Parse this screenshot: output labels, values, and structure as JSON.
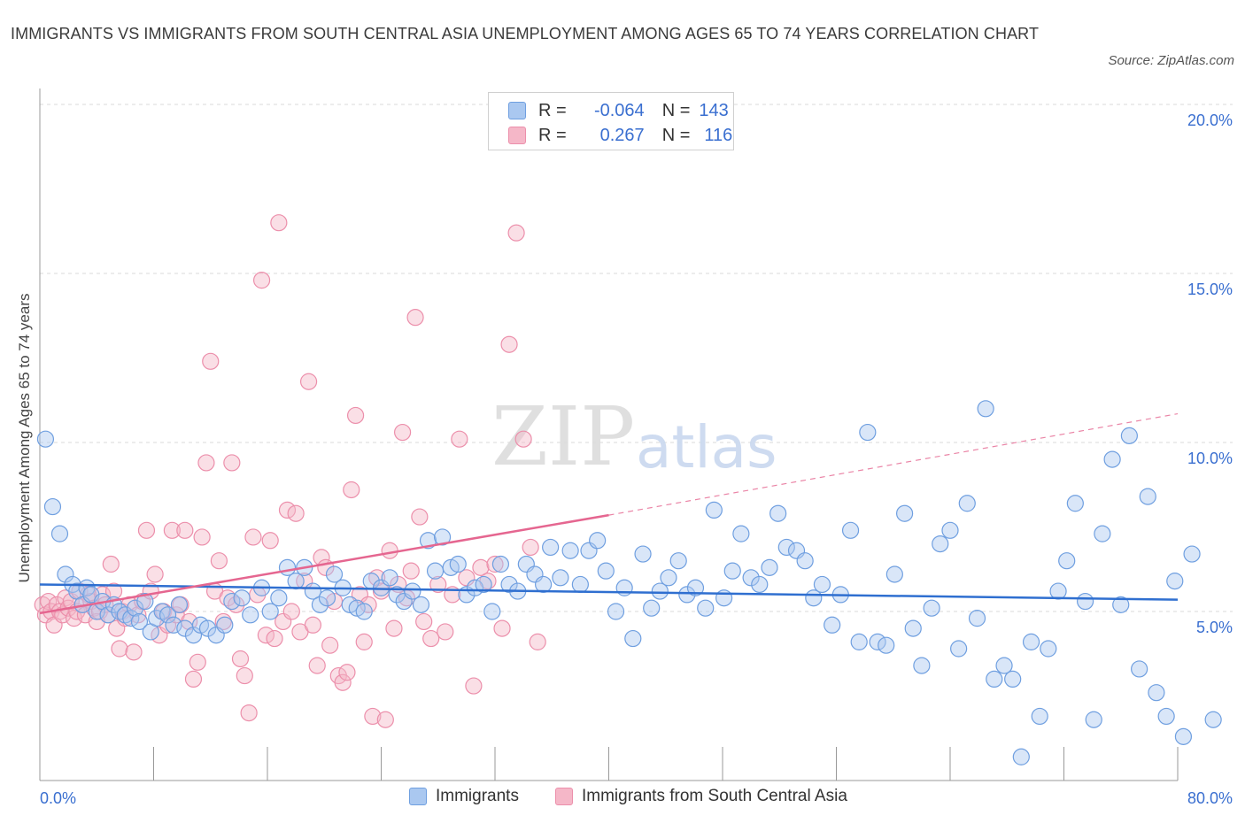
{
  "title": "IMMIGRANTS VS IMMIGRANTS FROM SOUTH CENTRAL ASIA UNEMPLOYMENT AMONG AGES 65 TO 74 YEARS CORRELATION CHART",
  "source": "Source: ZipAtlas.com",
  "watermark": {
    "zip": "ZIP",
    "atlas": "atlas"
  },
  "legend": {
    "r_label": "R =",
    "n_label": "N =",
    "rows": [
      {
        "r": "-0.064",
        "n": "143"
      },
      {
        "r": "0.267",
        "n": "116"
      }
    ]
  },
  "colors": {
    "blue_fill": "#aac8f0",
    "blue_stroke": "#6f9fe0",
    "blue_line": "#2f6fd0",
    "pink_fill": "#f5b7c8",
    "pink_stroke": "#ec8fab",
    "pink_line": "#e56690",
    "axis_label": "#3a6fd0",
    "grid": "#d9d9d9"
  },
  "chart_data": {
    "type": "scatter",
    "xlabel": "",
    "ylabel": "Unemployment Among Ages 65 to 74 years",
    "xlim": [
      0,
      80
    ],
    "ylim": [
      0,
      20
    ],
    "x_ticks_labeled": [
      "0.0%",
      "80.0%"
    ],
    "y_ticks": [
      {
        "value": 5,
        "label": "5.0%"
      },
      {
        "value": 10,
        "label": "10.0%"
      },
      {
        "value": 15,
        "label": "15.0%"
      },
      {
        "value": 20,
        "label": "20.0%"
      }
    ],
    "grid": "horizontal dashed",
    "legend_position": "top-center",
    "series": [
      {
        "name": "Immigrants",
        "r": -0.064,
        "n": 143,
        "trend": {
          "x": [
            0,
            80
          ],
          "y": [
            5.8,
            5.35
          ],
          "style": "solid"
        },
        "points": [
          [
            0.4,
            10.1
          ],
          [
            0.9,
            8.1
          ],
          [
            1.4,
            7.3
          ],
          [
            1.8,
            6.1
          ],
          [
            2.3,
            5.8
          ],
          [
            2.6,
            5.6
          ],
          [
            3.0,
            5.2
          ],
          [
            3.3,
            5.7
          ],
          [
            3.6,
            5.5
          ],
          [
            4.0,
            5.0
          ],
          [
            4.4,
            5.3
          ],
          [
            4.8,
            4.9
          ],
          [
            5.2,
            5.2
          ],
          [
            5.6,
            5.0
          ],
          [
            6.0,
            4.9
          ],
          [
            6.4,
            4.8
          ],
          [
            6.7,
            5.1
          ],
          [
            7.0,
            4.7
          ],
          [
            7.4,
            5.3
          ],
          [
            7.8,
            4.4
          ],
          [
            8.2,
            4.8
          ],
          [
            8.6,
            5.0
          ],
          [
            9.0,
            4.9
          ],
          [
            9.4,
            4.6
          ],
          [
            9.8,
            5.2
          ],
          [
            10.2,
            4.5
          ],
          [
            10.8,
            4.3
          ],
          [
            11.3,
            4.6
          ],
          [
            11.8,
            4.5
          ],
          [
            12.4,
            4.3
          ],
          [
            13.0,
            4.6
          ],
          [
            13.5,
            5.3
          ],
          [
            14.2,
            5.4
          ],
          [
            14.8,
            4.9
          ],
          [
            15.6,
            5.7
          ],
          [
            16.2,
            5.0
          ],
          [
            16.8,
            5.4
          ],
          [
            17.4,
            6.3
          ],
          [
            18.0,
            5.9
          ],
          [
            18.6,
            6.3
          ],
          [
            19.2,
            5.6
          ],
          [
            19.7,
            5.2
          ],
          [
            20.2,
            5.4
          ],
          [
            20.7,
            6.1
          ],
          [
            21.3,
            5.7
          ],
          [
            21.8,
            5.2
          ],
          [
            22.3,
            5.1
          ],
          [
            22.8,
            5.0
          ],
          [
            23.3,
            5.9
          ],
          [
            24.0,
            5.7
          ],
          [
            24.6,
            6.0
          ],
          [
            25.1,
            5.5
          ],
          [
            25.6,
            5.3
          ],
          [
            26.2,
            5.6
          ],
          [
            26.8,
            5.2
          ],
          [
            27.3,
            7.1
          ],
          [
            27.8,
            6.2
          ],
          [
            28.3,
            7.2
          ],
          [
            28.9,
            6.3
          ],
          [
            29.4,
            6.4
          ],
          [
            30.0,
            5.5
          ],
          [
            30.6,
            5.7
          ],
          [
            31.2,
            5.8
          ],
          [
            31.8,
            5.0
          ],
          [
            32.4,
            6.4
          ],
          [
            33.0,
            5.8
          ],
          [
            33.6,
            5.6
          ],
          [
            34.2,
            6.4
          ],
          [
            34.8,
            6.1
          ],
          [
            35.4,
            5.8
          ],
          [
            35.9,
            6.9
          ],
          [
            36.6,
            6.0
          ],
          [
            37.3,
            6.8
          ],
          [
            38.0,
            5.8
          ],
          [
            38.6,
            6.8
          ],
          [
            39.2,
            7.1
          ],
          [
            39.8,
            6.2
          ],
          [
            40.5,
            5.0
          ],
          [
            41.1,
            5.7
          ],
          [
            41.7,
            4.2
          ],
          [
            42.4,
            6.7
          ],
          [
            43.0,
            5.1
          ],
          [
            43.6,
            5.6
          ],
          [
            44.2,
            6.0
          ],
          [
            44.9,
            6.5
          ],
          [
            45.5,
            5.5
          ],
          [
            46.1,
            5.7
          ],
          [
            46.8,
            5.1
          ],
          [
            47.4,
            8.0
          ],
          [
            48.1,
            5.4
          ],
          [
            48.7,
            6.2
          ],
          [
            49.3,
            7.3
          ],
          [
            50.0,
            6.0
          ],
          [
            50.6,
            5.8
          ],
          [
            51.3,
            6.3
          ],
          [
            51.9,
            7.9
          ],
          [
            52.5,
            6.9
          ],
          [
            53.2,
            6.8
          ],
          [
            53.8,
            6.5
          ],
          [
            54.4,
            5.4
          ],
          [
            55.0,
            5.8
          ],
          [
            55.7,
            4.6
          ],
          [
            56.3,
            5.5
          ],
          [
            57.0,
            7.4
          ],
          [
            57.6,
            4.1
          ],
          [
            58.2,
            10.3
          ],
          [
            58.9,
            4.1
          ],
          [
            59.5,
            4.0
          ],
          [
            60.1,
            6.1
          ],
          [
            60.8,
            7.9
          ],
          [
            61.4,
            4.5
          ],
          [
            62.0,
            3.4
          ],
          [
            62.7,
            5.1
          ],
          [
            63.3,
            7.0
          ],
          [
            64.0,
            7.4
          ],
          [
            64.6,
            3.9
          ],
          [
            65.2,
            8.2
          ],
          [
            65.9,
            4.8
          ],
          [
            66.5,
            11.0
          ],
          [
            67.1,
            3.0
          ],
          [
            67.8,
            3.4
          ],
          [
            68.4,
            3.0
          ],
          [
            69.0,
            0.7
          ],
          [
            69.7,
            4.1
          ],
          [
            70.3,
            1.9
          ],
          [
            70.9,
            3.9
          ],
          [
            71.6,
            5.6
          ],
          [
            72.2,
            6.5
          ],
          [
            72.8,
            8.2
          ],
          [
            73.5,
            5.3
          ],
          [
            74.1,
            1.8
          ],
          [
            74.7,
            7.3
          ],
          [
            75.4,
            9.5
          ],
          [
            76.0,
            5.2
          ],
          [
            76.6,
            10.2
          ],
          [
            77.3,
            3.3
          ],
          [
            77.9,
            8.4
          ],
          [
            78.5,
            2.6
          ],
          [
            79.2,
            1.9
          ],
          [
            79.8,
            5.9
          ],
          [
            80.4,
            1.3
          ],
          [
            81.0,
            6.7
          ],
          [
            82.5,
            1.8
          ]
        ]
      },
      {
        "name": "Immigrants from South Central Asia",
        "r": 0.267,
        "n": 116,
        "trend": {
          "x": [
            0,
            40
          ],
          "y": [
            4.95,
            7.85
          ],
          "style": "solid",
          "dashed_extension_to": [
            80,
            10.85
          ]
        },
        "points": [
          [
            0.2,
            5.2
          ],
          [
            0.4,
            4.9
          ],
          [
            0.6,
            5.3
          ],
          [
            0.8,
            5.0
          ],
          [
            1.0,
            4.6
          ],
          [
            1.2,
            5.2
          ],
          [
            1.4,
            5.0
          ],
          [
            1.6,
            4.9
          ],
          [
            1.8,
            5.4
          ],
          [
            2.0,
            5.1
          ],
          [
            2.2,
            5.3
          ],
          [
            2.4,
            4.8
          ],
          [
            2.6,
            5.0
          ],
          [
            2.8,
            5.6
          ],
          [
            3.0,
            5.2
          ],
          [
            3.2,
            4.9
          ],
          [
            3.4,
            5.5
          ],
          [
            3.6,
            5.3
          ],
          [
            3.8,
            5.1
          ],
          [
            4.0,
            4.7
          ],
          [
            4.2,
            5.0
          ],
          [
            4.4,
            5.5
          ],
          [
            4.6,
            5.2
          ],
          [
            4.8,
            4.9
          ],
          [
            5.0,
            6.4
          ],
          [
            5.2,
            5.6
          ],
          [
            5.4,
            4.5
          ],
          [
            5.6,
            3.9
          ],
          [
            5.8,
            5.0
          ],
          [
            6.0,
            4.8
          ],
          [
            6.3,
            5.2
          ],
          [
            6.6,
            3.8
          ],
          [
            6.9,
            4.9
          ],
          [
            7.2,
            5.3
          ],
          [
            7.5,
            7.4
          ],
          [
            7.8,
            5.6
          ],
          [
            8.1,
            6.1
          ],
          [
            8.4,
            4.3
          ],
          [
            8.7,
            5.0
          ],
          [
            9.0,
            4.6
          ],
          [
            9.3,
            7.4
          ],
          [
            9.6,
            4.9
          ],
          [
            9.9,
            5.2
          ],
          [
            10.2,
            7.4
          ],
          [
            10.5,
            4.7
          ],
          [
            10.8,
            3.0
          ],
          [
            11.1,
            3.5
          ],
          [
            11.4,
            7.2
          ],
          [
            11.7,
            9.4
          ],
          [
            12.0,
            12.4
          ],
          [
            12.3,
            5.6
          ],
          [
            12.6,
            6.5
          ],
          [
            12.9,
            4.7
          ],
          [
            13.2,
            5.4
          ],
          [
            13.5,
            9.4
          ],
          [
            13.8,
            5.2
          ],
          [
            14.1,
            3.6
          ],
          [
            14.4,
            3.1
          ],
          [
            14.7,
            2.0
          ],
          [
            15.0,
            7.2
          ],
          [
            15.3,
            5.5
          ],
          [
            15.6,
            14.8
          ],
          [
            15.9,
            4.3
          ],
          [
            16.2,
            7.1
          ],
          [
            16.5,
            4.2
          ],
          [
            16.8,
            16.5
          ],
          [
            17.1,
            4.7
          ],
          [
            17.4,
            8.0
          ],
          [
            17.7,
            5.0
          ],
          [
            18.0,
            7.9
          ],
          [
            18.3,
            4.4
          ],
          [
            18.6,
            5.9
          ],
          [
            18.9,
            11.8
          ],
          [
            19.2,
            4.6
          ],
          [
            19.5,
            3.4
          ],
          [
            19.8,
            6.6
          ],
          [
            20.1,
            6.3
          ],
          [
            20.4,
            4.0
          ],
          [
            20.7,
            5.3
          ],
          [
            21.0,
            3.1
          ],
          [
            21.3,
            2.9
          ],
          [
            21.6,
            3.2
          ],
          [
            21.9,
            8.6
          ],
          [
            22.2,
            10.8
          ],
          [
            22.5,
            5.5
          ],
          [
            22.8,
            4.1
          ],
          [
            23.1,
            5.2
          ],
          [
            23.4,
            1.9
          ],
          [
            23.7,
            6.0
          ],
          [
            24.0,
            5.6
          ],
          [
            24.3,
            1.8
          ],
          [
            24.6,
            6.8
          ],
          [
            24.9,
            4.5
          ],
          [
            25.2,
            5.8
          ],
          [
            25.5,
            10.3
          ],
          [
            25.8,
            5.4
          ],
          [
            26.1,
            6.2
          ],
          [
            26.4,
            13.7
          ],
          [
            26.7,
            7.8
          ],
          [
            27.0,
            4.7
          ],
          [
            27.5,
            4.2
          ],
          [
            28.0,
            5.8
          ],
          [
            28.5,
            4.4
          ],
          [
            29.0,
            5.5
          ],
          [
            29.5,
            10.1
          ],
          [
            30.0,
            6.0
          ],
          [
            30.5,
            2.8
          ],
          [
            31.0,
            6.3
          ],
          [
            31.5,
            5.9
          ],
          [
            32.0,
            6.4
          ],
          [
            32.5,
            4.5
          ],
          [
            33.0,
            12.9
          ],
          [
            33.5,
            16.2
          ],
          [
            34.0,
            10.1
          ],
          [
            34.5,
            6.9
          ],
          [
            35.0,
            4.1
          ]
        ]
      }
    ]
  },
  "bottom_legend": [
    "Immigrants",
    "Immigrants from South Central Asia"
  ],
  "y_axis_ticks_text": [
    "20.0%",
    "15.0%",
    "10.0%",
    "5.0%"
  ],
  "x_axis_ticks_text": [
    "0.0%",
    "80.0%"
  ]
}
